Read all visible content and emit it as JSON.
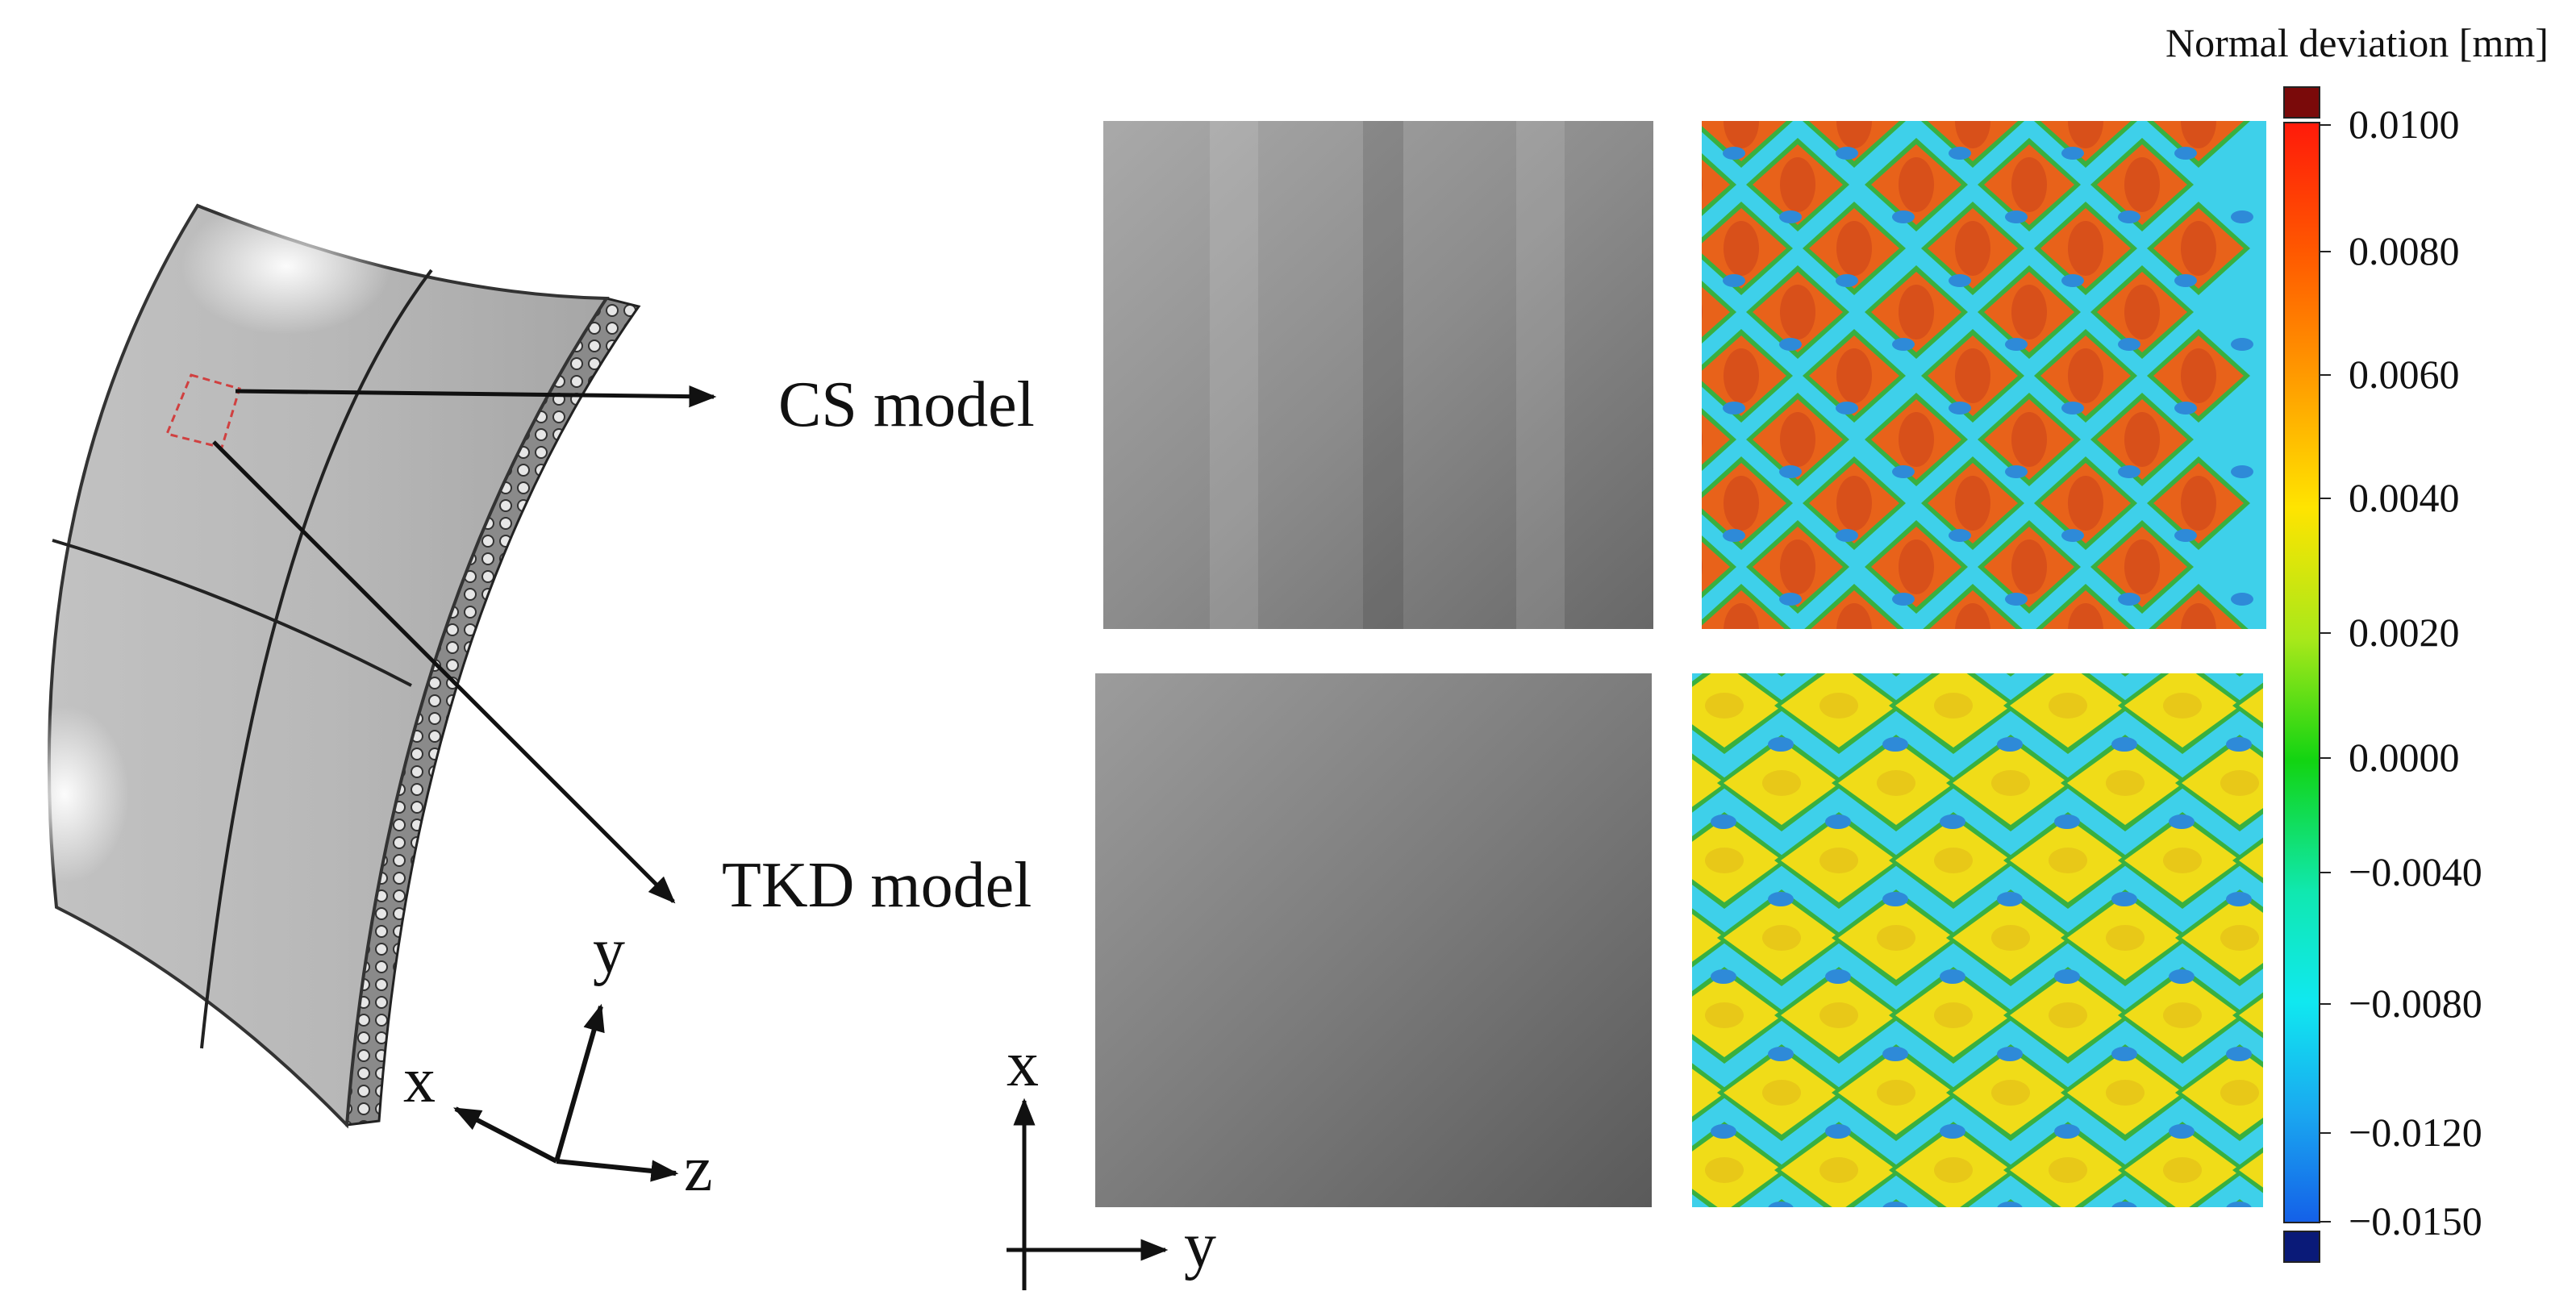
{
  "labels": {
    "cs_model": "CS model",
    "tkd_model": "TKD model"
  },
  "axes_3d": {
    "x": "x",
    "y": "y",
    "z": "z"
  },
  "axes_2d": {
    "x": "x",
    "y": "y"
  },
  "colorbar": {
    "title": "Normal deviation [mm]",
    "ticks": [
      "0.0100",
      "0.0080",
      "0.0060",
      "0.0040",
      "0.0020",
      "0.0000",
      "−0.0040",
      "−0.0080",
      "−0.0120",
      "−0.0150"
    ],
    "over_color": "#7a0a0a",
    "under_color": "#0a1a78"
  },
  "colors": {
    "deviation_high": "#e8621a",
    "deviation_mid": "#f0dc18",
    "deviation_low": "#3ed0ea",
    "deviation_lowest": "#2e8ad8",
    "boundary": "#38b040"
  }
}
